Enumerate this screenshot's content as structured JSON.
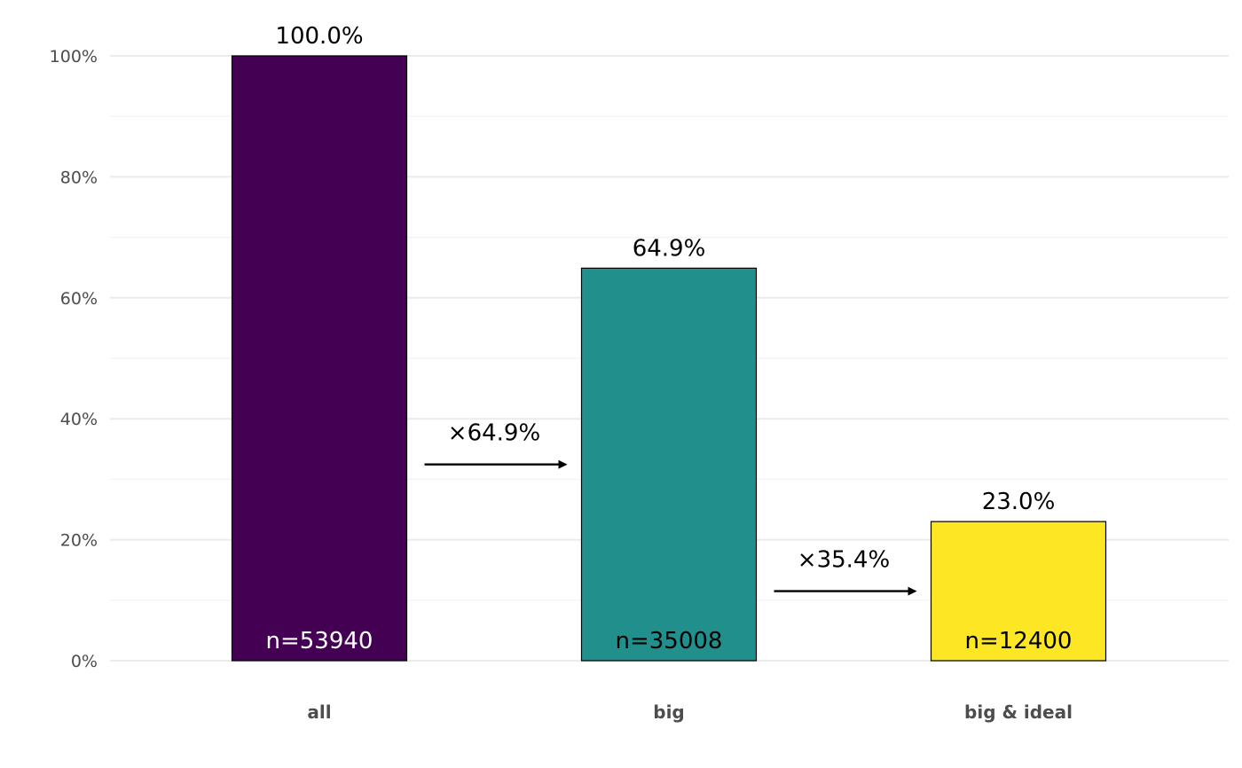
{
  "chart_data": {
    "type": "bar",
    "title": "",
    "xlabel": "",
    "ylabel": "",
    "categories": [
      "all",
      "big",
      "big & ideal"
    ],
    "values": [
      100.0,
      64.9,
      23.0
    ],
    "value_labels": [
      "100.0%",
      "64.9%",
      "23.0%"
    ],
    "n_labels": [
      "n=53940",
      "n=35008",
      "n=12400"
    ],
    "bar_colors": [
      "#440154",
      "#21908C",
      "#FDE725"
    ],
    "n_label_colors": [
      "#ffffff",
      "#000000",
      "#000000"
    ],
    "ratios": [
      {
        "from": "all",
        "to": "big",
        "label": "×64.9%",
        "value": 64.9
      },
      {
        "from": "big",
        "to": "big & ideal",
        "label": "×35.4%",
        "value": 35.4
      }
    ],
    "ylim": [
      0,
      100
    ],
    "yticks": [
      0,
      20,
      40,
      60,
      80,
      100
    ],
    "ytick_labels": [
      "0%",
      "20%",
      "40%",
      "60%",
      "80%",
      "100%"
    ],
    "grid": true,
    "legend": "none"
  }
}
